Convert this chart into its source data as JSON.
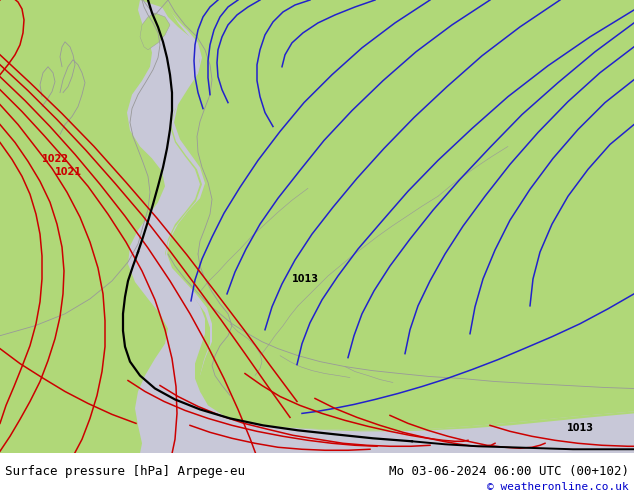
{
  "title_left": "Surface pressure [hPa] Arpege-eu",
  "title_right": "Mo 03-06-2024 06:00 UTC (00+102)",
  "credit": "© weatheronline.co.uk",
  "land_color": "#b0d878",
  "sea_color": "#c8c8d8",
  "fig_width": 6.34,
  "fig_height": 4.9,
  "title_fontsize": 9,
  "credit_fontsize": 8,
  "blue": "#2222cc",
  "red": "#cc0000",
  "black": "#000000",
  "isobar_lw": 1.1,
  "label_fontsize": 7,
  "border_color": "#999999",
  "border_lw": 0.6
}
